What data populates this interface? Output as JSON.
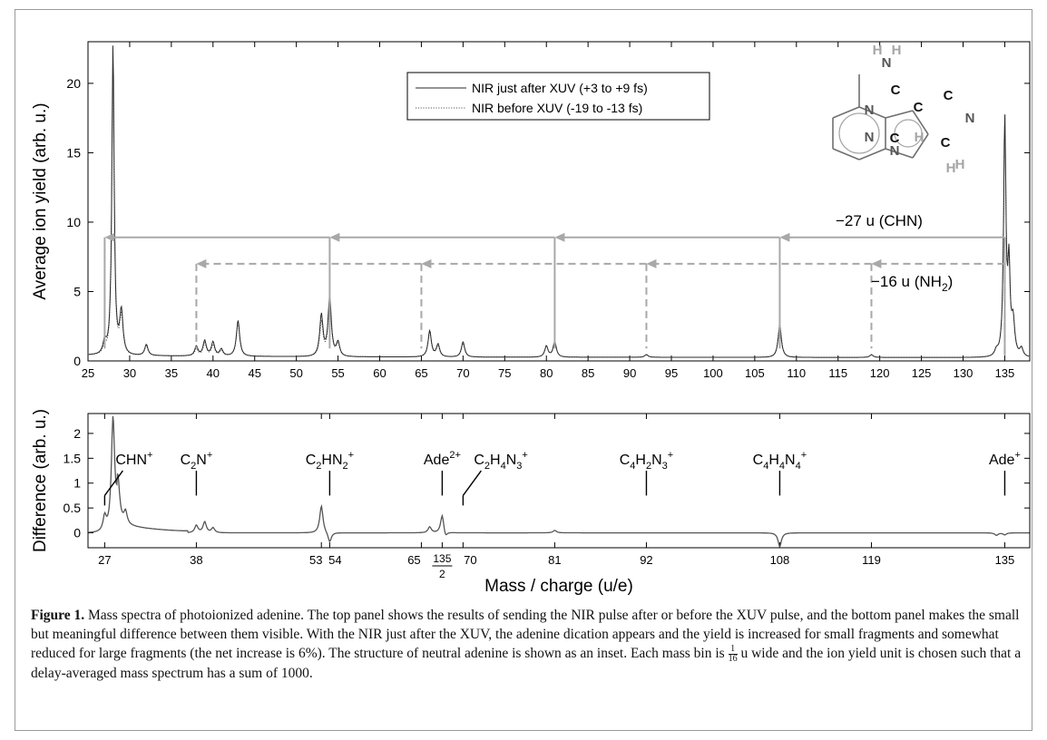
{
  "chart_data": [
    {
      "type": "line",
      "panel": "top",
      "ylabel": "Average ion yield (arb. u.)",
      "xlim": [
        25,
        138
      ],
      "ylim": [
        0,
        23
      ],
      "yticks": [
        0,
        5,
        10,
        15,
        20
      ],
      "xticks": [
        25,
        30,
        35,
        40,
        45,
        50,
        55,
        60,
        65,
        70,
        75,
        80,
        85,
        90,
        95,
        100,
        105,
        110,
        115,
        120,
        125,
        130,
        135
      ],
      "legend_position": "top-center",
      "series": [
        {
          "name": "NIR just after XUV (+3 to +9 fs)",
          "style": "solid",
          "peaks": [
            [
              27,
              0.9
            ],
            [
              28,
              22.6
            ],
            [
              29,
              3.1
            ],
            [
              32,
              0.8
            ],
            [
              38,
              0.7
            ],
            [
              39,
              1.1
            ],
            [
              40,
              1.0
            ],
            [
              41,
              0.5
            ],
            [
              43,
              2.6
            ],
            [
              53,
              3.0
            ],
            [
              54,
              4.3
            ],
            [
              55,
              1.0
            ],
            [
              66,
              1.9
            ],
            [
              67,
              0.9
            ],
            [
              70,
              1.1
            ],
            [
              80,
              0.8
            ],
            [
              81,
              1.1
            ],
            [
              92,
              0.2
            ],
            [
              108,
              2.3
            ],
            [
              119,
              0.2
            ],
            [
              134,
              0.4
            ],
            [
              135,
              17.1
            ],
            [
              135.5,
              6.2
            ],
            [
              136,
              2.5
            ],
            [
              137,
              0.6
            ]
          ]
        },
        {
          "name": "NIR before XUV (-19 to -13 fs)",
          "style": "dotted",
          "peaks": [
            [
              27,
              0.6
            ],
            [
              28,
              20.3
            ],
            [
              29,
              2.8
            ],
            [
              32,
              0.7
            ],
            [
              38,
              0.5
            ],
            [
              39,
              0.9
            ],
            [
              40,
              0.8
            ],
            [
              41,
              0.4
            ],
            [
              43,
              2.4
            ],
            [
              53,
              2.5
            ],
            [
              54,
              3.9
            ],
            [
              55,
              0.9
            ],
            [
              66,
              1.8
            ],
            [
              67,
              0.8
            ],
            [
              70,
              1.0
            ],
            [
              80,
              0.8
            ],
            [
              81,
              1.1
            ],
            [
              92,
              0.2
            ],
            [
              108,
              2.5
            ],
            [
              119,
              0.2
            ],
            [
              134,
              0.4
            ],
            [
              135,
              17.1
            ],
            [
              135.5,
              6.2
            ],
            [
              136,
              2.5
            ],
            [
              137,
              0.6
            ]
          ]
        }
      ],
      "arrows_chn": {
        "label": "−27 u (CHN)",
        "y": 8.9,
        "segments": [
          [
            135,
            108
          ],
          [
            108,
            81
          ],
          [
            81,
            54
          ],
          [
            54,
            27
          ]
        ]
      },
      "arrows_nh2": {
        "label_prefix": "−16 u (NH",
        "label_sub": "2",
        "label_suffix": ")",
        "y": 7.0,
        "segments": [
          [
            135,
            119
          ],
          [
            119,
            92
          ],
          [
            92,
            65
          ],
          [
            65,
            38
          ]
        ]
      },
      "inset": {
        "atoms": [
          "H",
          "H",
          "N",
          "C",
          "N",
          "C",
          "C",
          "N",
          "C",
          "H",
          "C",
          "N",
          "N",
          "H",
          "H"
        ]
      }
    },
    {
      "type": "line",
      "panel": "bottom",
      "ylabel": "Difference (arb. u.)",
      "xlabel": "Mass / charge (u/e)",
      "xlim": [
        25,
        138
      ],
      "ylim": [
        -0.3,
        2.4
      ],
      "yticks": [
        0,
        0.5,
        1,
        1.5,
        2
      ],
      "ytick_labels": [
        "0",
        "0.5",
        "1",
        "1.5",
        "2"
      ],
      "xticks": [
        27,
        38,
        53,
        54,
        65,
        67.5,
        70,
        81,
        92,
        108,
        119,
        135
      ],
      "xtick_labels": [
        "27",
        "38",
        "53",
        "54",
        "65",
        "",
        "70",
        "81",
        "92",
        "108",
        "119",
        "135"
      ],
      "frac_tick": {
        "numerator": "135",
        "denominator": "2"
      },
      "series": [
        {
          "name": "",
          "peaks": [
            [
              27,
              0.3
            ],
            [
              28,
              2.28
            ],
            [
              28.6,
              0.7
            ],
            [
              29.5,
              0.25
            ],
            [
              38,
              0.15
            ],
            [
              39,
              0.22
            ],
            [
              40,
              0.1
            ],
            [
              53,
              0.55
            ],
            [
              54,
              -0.2
            ],
            [
              66,
              0.12
            ],
            [
              67.5,
              0.37
            ],
            [
              67.9,
              -0.12
            ],
            [
              81,
              0.05
            ],
            [
              108,
              -0.28
            ],
            [
              134,
              -0.05
            ],
            [
              135,
              -0.04
            ]
          ]
        }
      ],
      "labels": [
        {
          "prefix": "CHN",
          "sub": "",
          "sup": "+",
          "x": 27,
          "mode": "diag"
        },
        {
          "prefix": "C",
          "sub": "2",
          "rest": "N",
          "sup": "+",
          "x": 38
        },
        {
          "prefix": "C",
          "sub": "2",
          "rest": "HN",
          "sub2": "2",
          "sup": "+",
          "x": 54
        },
        {
          "prefix": "Ade",
          "sub": "",
          "sup": "2+",
          "x": 67.5
        },
        {
          "prefix": "C",
          "sub": "2",
          "rest": "H",
          "sub2": "4",
          "rest2": "N",
          "sub3": "3",
          "sup": "+",
          "x": 70,
          "mode": "diag"
        },
        {
          "prefix": "C",
          "sub": "4",
          "rest": "H",
          "sub2": "2",
          "rest2": "N",
          "sub3": "3",
          "sup": "+",
          "x": 92
        },
        {
          "prefix": "C",
          "sub": "4",
          "rest": "H",
          "sub2": "4",
          "rest2": "N",
          "sub3": "4",
          "sup": "+",
          "x": 108
        },
        {
          "prefix": "Ade",
          "sub": "",
          "sup": "+",
          "x": 135
        }
      ]
    }
  ],
  "caption": {
    "label": "Figure 1.",
    "text_a": " Mass spectra of photoionized adenine. The top panel shows the results of sending the NIR pulse after or before the XUV pulse, and the bottom panel makes the small but meaningful difference between them visible. With the NIR just after the XUV, the adenine dication appears and the yield is increased for small fragments and somewhat reduced for large fragments (the net increase is 6%). The structure of neutral adenine is shown as an inset. Each mass bin is ",
    "frac_num": "1",
    "frac_den": "16",
    "text_b": " u wide and the ion yield unit is chosen such that a delay-averaged mass spectrum has a sum of 1000."
  },
  "colors": {
    "trace": "#2a2a2a",
    "arrow": "#a8a8a8",
    "inset_bond": "#6f6f6f",
    "inset_h": "#a5a5a5"
  }
}
